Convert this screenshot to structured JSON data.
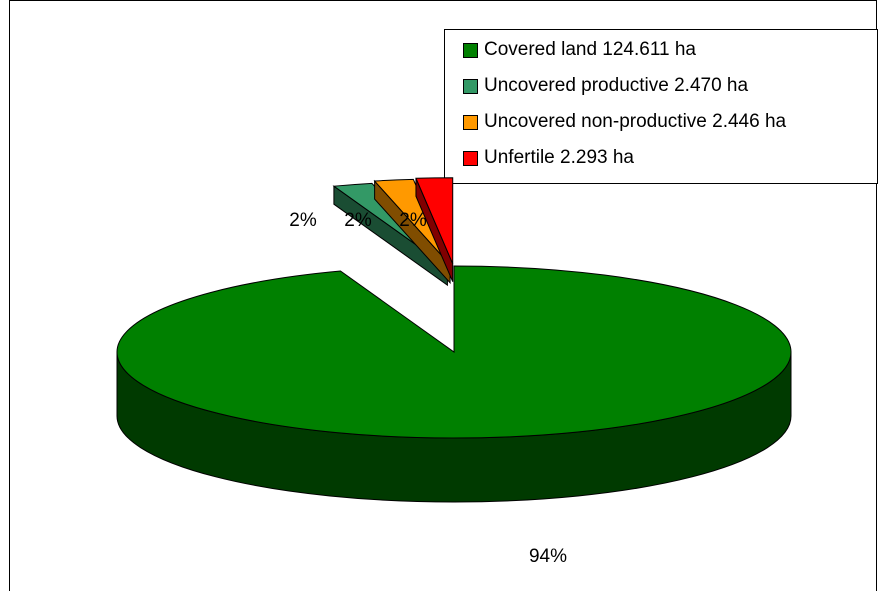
{
  "chart_data": {
    "type": "pie",
    "title": "",
    "labels": [
      "Covered land 124.611 ha",
      "Uncovered productive 2.470 ha",
      "Uncovered non-productive 2.446 ha",
      "Unfertile 2.293 ha"
    ],
    "values": [
      124.611,
      2.47,
      2.446,
      2.293
    ],
    "percent_labels": [
      "94%",
      "2%",
      "2%",
      "2%"
    ],
    "colors": [
      "#008000",
      "#339966",
      "#FF9900",
      "#FF0000"
    ],
    "exploded": [
      false,
      true,
      true,
      true
    ],
    "legend_position": "top-right",
    "style": "3d"
  }
}
